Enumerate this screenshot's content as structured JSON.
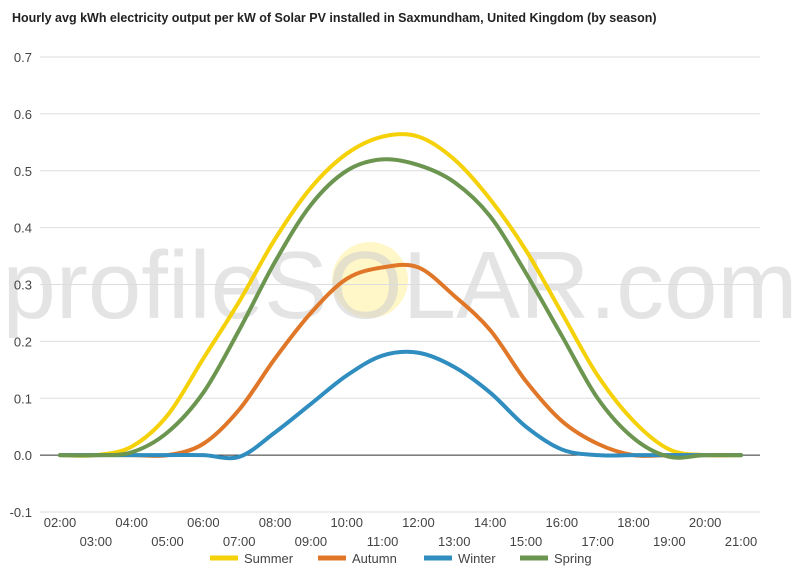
{
  "chart_data": {
    "type": "line",
    "title": "Hourly avg kWh electricity output per kW of Solar PV installed in Saxmundham, United Kingdom (by season)",
    "xlabel": "",
    "ylabel": "",
    "x": [
      "02:00",
      "03:00",
      "04:00",
      "05:00",
      "06:00",
      "07:00",
      "08:00",
      "09:00",
      "10:00",
      "11:00",
      "12:00",
      "13:00",
      "14:00",
      "15:00",
      "16:00",
      "17:00",
      "18:00",
      "19:00",
      "20:00",
      "21:00"
    ],
    "ylim": [
      -0.1,
      0.7
    ],
    "yticks": [
      "0.7",
      "0.6",
      "0.5",
      "0.4",
      "0.3",
      "0.2",
      "0.1",
      "0.0",
      "-0.1"
    ],
    "grid": true,
    "legend_position": "bottom",
    "watermark": "profileSOLAR.com",
    "series": [
      {
        "name": "Summer",
        "color": "#f5d10a",
        "values": [
          0,
          0,
          0.015,
          0.07,
          0.17,
          0.27,
          0.38,
          0.47,
          0.53,
          0.56,
          0.56,
          0.52,
          0.45,
          0.36,
          0.25,
          0.14,
          0.06,
          0.01,
          0,
          0
        ]
      },
      {
        "name": "Autumn",
        "color": "#e07628",
        "values": [
          0,
          0,
          0,
          0,
          0.02,
          0.08,
          0.17,
          0.25,
          0.31,
          0.33,
          0.33,
          0.28,
          0.22,
          0.13,
          0.06,
          0.02,
          0,
          0,
          0,
          0
        ]
      },
      {
        "name": "Winter",
        "color": "#2f8dbf",
        "values": [
          0,
          0,
          0,
          0,
          0,
          -0.003,
          0.04,
          0.09,
          0.14,
          0.175,
          0.18,
          0.155,
          0.11,
          0.05,
          0.01,
          0,
          0,
          0,
          0,
          0
        ]
      },
      {
        "name": "Spring",
        "color": "#6c9650",
        "values": [
          0,
          0,
          0.005,
          0.04,
          0.11,
          0.22,
          0.34,
          0.44,
          0.5,
          0.52,
          0.51,
          0.48,
          0.42,
          0.32,
          0.21,
          0.1,
          0.03,
          -0.003,
          0,
          0
        ]
      }
    ]
  }
}
